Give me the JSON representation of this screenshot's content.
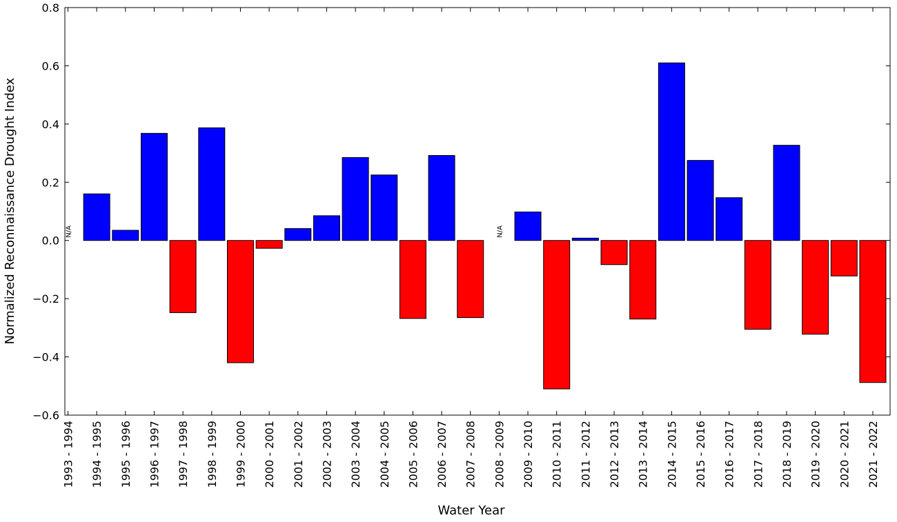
{
  "chart_data": {
    "type": "bar",
    "x_label": "Water Year",
    "y_label": "Normalized Reconnaissance Drought Index",
    "categories": [
      "1993 - 1994",
      "1994 - 1995",
      "1995 - 1996",
      "1996 - 1997",
      "1997 - 1998",
      "1998 - 1999",
      "1999 - 2000",
      "2000 - 2001",
      "2001 - 2002",
      "2002 - 2003",
      "2003 - 2004",
      "2004 - 2005",
      "2005 - 2006",
      "2006 - 2007",
      "2007 - 2008",
      "2008 - 2009",
      "2009 - 2010",
      "2010 - 2011",
      "2011 - 2012",
      "2012 - 2013",
      "2013 - 2014",
      "2014 - 2015",
      "2015 - 2016",
      "2016 - 2017",
      "2017 - 2018",
      "2018 - 2019",
      "2019 - 2020",
      "2020 - 2021",
      "2021 - 2022"
    ],
    "values": [
      null,
      0.16,
      0.035,
      0.368,
      -0.248,
      0.387,
      -0.42,
      -0.027,
      0.041,
      0.085,
      0.285,
      0.225,
      -0.268,
      0.292,
      -0.265,
      null,
      0.098,
      -0.51,
      0.008,
      -0.083,
      -0.27,
      0.61,
      0.275,
      0.147,
      -0.305,
      0.327,
      -0.322,
      -0.122,
      -0.488
    ],
    "value_labels": [
      "N/A",
      null,
      null,
      null,
      null,
      null,
      null,
      null,
      null,
      null,
      null,
      null,
      null,
      null,
      null,
      "N/A",
      null,
      null,
      null,
      null,
      null,
      null,
      null,
      null,
      null,
      null,
      null,
      null,
      null
    ],
    "positive_color": "#0000ff",
    "negative_color": "#ff0000",
    "ylim": [
      -0.6,
      0.8
    ],
    "yticks": [
      {
        "value": -0.6,
        "label": "−0.6"
      },
      {
        "value": -0.4,
        "label": "−0.4"
      },
      {
        "value": -0.2,
        "label": "−0.2"
      },
      {
        "value": 0,
        "label": "0.0"
      },
      0.2,
      0.4,
      0.6,
      0.8
    ],
    "grid": false
  }
}
